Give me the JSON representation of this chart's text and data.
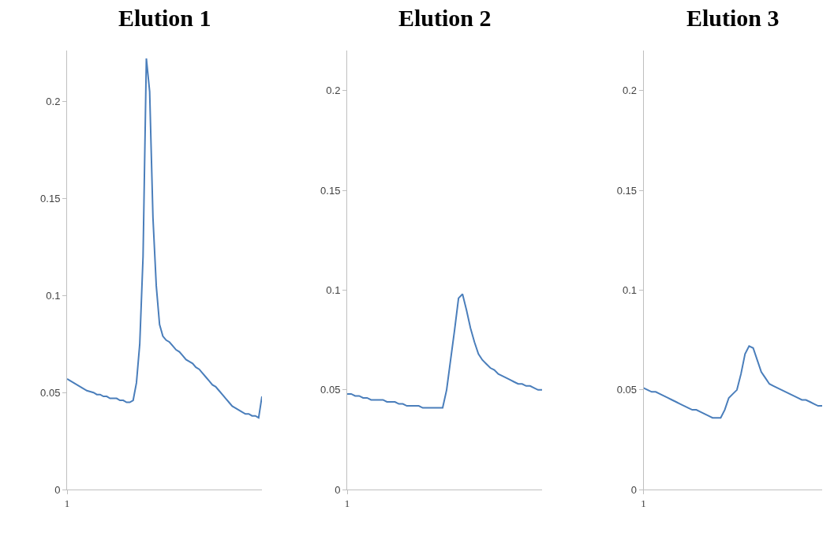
{
  "chart_data": [
    {
      "type": "line",
      "title": "Elution 1",
      "color": "#4a7ebb",
      "ylim": [
        0,
        0.226
      ],
      "yticks": [
        0,
        0.05,
        0.1,
        0.15,
        0.2
      ],
      "grid": false,
      "legend": false,
      "categories": [
        "1",
        null,
        null,
        null,
        null,
        null,
        null,
        null,
        null,
        null,
        null,
        null,
        null,
        null,
        null,
        null,
        null,
        null,
        null,
        null,
        null,
        null,
        null,
        null,
        null,
        null,
        null,
        null,
        null,
        null,
        null,
        null,
        null,
        null,
        null,
        null,
        null,
        null,
        null,
        null,
        null,
        null,
        null,
        null,
        null,
        null,
        null,
        null,
        null,
        null,
        null,
        null,
        null,
        null,
        null,
        null,
        null,
        null,
        null,
        null
      ],
      "values": [
        0.057,
        0.056,
        0.055,
        0.054,
        0.053,
        0.052,
        0.051,
        0.0505,
        0.05,
        0.049,
        0.049,
        0.048,
        0.048,
        0.047,
        0.047,
        0.047,
        0.046,
        0.046,
        0.045,
        0.045,
        0.046,
        0.055,
        0.075,
        0.12,
        0.222,
        0.205,
        0.14,
        0.105,
        0.085,
        0.079,
        0.077,
        0.076,
        0.074,
        0.072,
        0.071,
        0.069,
        0.067,
        0.066,
        0.065,
        0.063,
        0.062,
        0.06,
        0.058,
        0.056,
        0.054,
        0.053,
        0.051,
        0.049,
        0.047,
        0.045,
        0.043,
        0.042,
        0.041,
        0.04,
        0.039,
        0.039,
        0.038,
        0.038,
        0.037,
        0.048
      ]
    },
    {
      "type": "line",
      "title": "Elution 2",
      "color": "#4a7ebb",
      "ylim": [
        0,
        0.22
      ],
      "yticks": [
        0,
        0.05,
        0.1,
        0.15,
        0.2
      ],
      "grid": false,
      "legend": false,
      "categories": [
        "1",
        null,
        null,
        null,
        null,
        null,
        null,
        null,
        null,
        null,
        null,
        null,
        null,
        null,
        null,
        null,
        null,
        null,
        null,
        null,
        null,
        null,
        null,
        null,
        null,
        null,
        null,
        null,
        null,
        null,
        null,
        null,
        null,
        null,
        null,
        null,
        null,
        null,
        null,
        null,
        null,
        null,
        null,
        null,
        null,
        null,
        null,
        null,
        null,
        null
      ],
      "values": [
        0.048,
        0.048,
        0.047,
        0.047,
        0.046,
        0.046,
        0.045,
        0.045,
        0.045,
        0.045,
        0.044,
        0.044,
        0.044,
        0.043,
        0.043,
        0.042,
        0.042,
        0.042,
        0.042,
        0.041,
        0.041,
        0.041,
        0.041,
        0.041,
        0.041,
        0.05,
        0.065,
        0.08,
        0.096,
        0.098,
        0.09,
        0.081,
        0.074,
        0.068,
        0.065,
        0.063,
        0.061,
        0.06,
        0.058,
        0.057,
        0.056,
        0.055,
        0.054,
        0.053,
        0.053,
        0.052,
        0.052,
        0.051,
        0.05,
        0.05
      ]
    },
    {
      "type": "line",
      "title": "Elution 3",
      "color": "#4a7ebb",
      "ylim": [
        0,
        0.22
      ],
      "yticks": [
        0,
        0.05,
        0.1,
        0.15,
        0.2
      ],
      "grid": false,
      "legend": false,
      "categories": [
        "1",
        null,
        null,
        null,
        null,
        null,
        null,
        null,
        null,
        null,
        null,
        null,
        null,
        null,
        null,
        null,
        null,
        null,
        null,
        null,
        null,
        null,
        null,
        null,
        null,
        null,
        null,
        null,
        null,
        null,
        null,
        null,
        null,
        null,
        null,
        null,
        null,
        null,
        null,
        null,
        null,
        null,
        null,
        null,
        null
      ],
      "values": [
        0.051,
        0.05,
        0.049,
        0.049,
        0.048,
        0.047,
        0.046,
        0.045,
        0.044,
        0.043,
        0.042,
        0.041,
        0.04,
        0.04,
        0.039,
        0.038,
        0.037,
        0.036,
        0.036,
        0.036,
        0.04,
        0.046,
        0.048,
        0.05,
        0.058,
        0.068,
        0.072,
        0.071,
        0.065,
        0.059,
        0.056,
        0.053,
        0.052,
        0.051,
        0.05,
        0.049,
        0.048,
        0.047,
        0.046,
        0.045,
        0.045,
        0.044,
        0.043,
        0.042,
        0.042
      ]
    }
  ]
}
